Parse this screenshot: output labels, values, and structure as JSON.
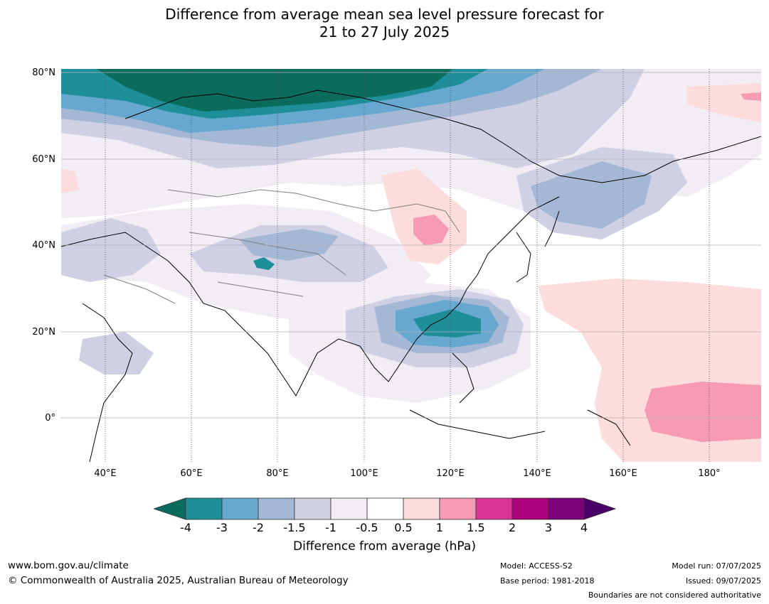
{
  "title": {
    "line1": "Difference from average mean sea level pressure forecast for",
    "line2": "21 to 27 July 2025"
  },
  "map": {
    "lat_labels": [
      "80°N",
      "60°N",
      "40°N",
      "20°N",
      "0°"
    ],
    "lon_labels": [
      "40°E",
      "60°E",
      "80°E",
      "100°E",
      "120°E",
      "140°E",
      "160°E",
      "180°"
    ],
    "colors": {
      "lt_neg4": "#0b6b5c",
      "neg4_neg3": "#1e8f98",
      "neg3_neg2": "#67a8d0",
      "neg2_neg15": "#a4b8d6",
      "neg15_neg1": "#cfd0e4",
      "neg1_neg05": "#f2ecf5",
      "neg05_05": "#ffffff",
      "p05_1": "#fcdcdc",
      "p1_15": "#f79ab6",
      "p15_2": "#dd3497",
      "p2_3": "#ae017e",
      "p3_4": "#7a0177",
      "gt4": "#49006a",
      "coast": "#000000",
      "border": "#808080",
      "grid": "#b3b3b3"
    }
  },
  "colorbar": {
    "ticks": [
      "-4",
      "-3",
      "-2",
      "-1.5",
      "-1",
      "-0.5",
      "0.5",
      "1",
      "1.5",
      "2",
      "3",
      "4"
    ],
    "label": "Difference from average (hPa)"
  },
  "footer": {
    "website": "www.bom.gov.au/climate",
    "copyright": "© Commonwealth of Australia 2025, Australian Bureau of Meteorology",
    "model": "Model: ACCESS-S2",
    "base_period": "Base period: 1981-2018",
    "model_run": "Model run: 07/07/2025",
    "issued": "Issued: 09/07/2025",
    "disclaimer": "Boundaries are not considered authoritative"
  }
}
